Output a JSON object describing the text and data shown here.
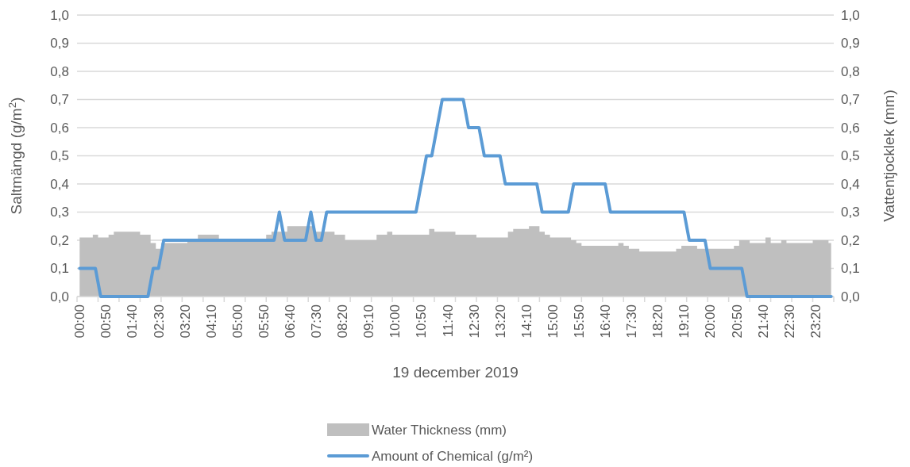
{
  "chart_data": {
    "type": "line",
    "xlabel": "19 december 2019",
    "ylabel": "Saltmängd (g/m$^{2}$)",
    "y2label": "Vattentjocklek (mm)",
    "categories": [
      "00:00",
      null,
      null,
      null,
      null,
      "00:50",
      null,
      null,
      null,
      null,
      "01:40",
      null,
      null,
      null,
      null,
      "02:30",
      null,
      null,
      null,
      null,
      "03:20",
      null,
      null,
      null,
      null,
      "04:10",
      null,
      null,
      null,
      null,
      "05:00",
      null,
      null,
      null,
      null,
      "05:50",
      null,
      null,
      null,
      null,
      "06:40",
      null,
      null,
      null,
      null,
      "07:30",
      null,
      null,
      null,
      null,
      "08:20",
      null,
      null,
      null,
      null,
      "09:10",
      null,
      null,
      null,
      null,
      "10:00",
      null,
      null,
      null,
      null,
      "10:50",
      null,
      null,
      null,
      null,
      "11:40",
      null,
      null,
      null,
      null,
      "12:30",
      null,
      null,
      null,
      null,
      "13:20",
      null,
      null,
      null,
      null,
      "14:10",
      null,
      null,
      null,
      null,
      "15:00",
      null,
      null,
      null,
      null,
      "15:50",
      null,
      null,
      null,
      null,
      "16:40",
      null,
      null,
      null,
      null,
      "17:30",
      null,
      null,
      null,
      null,
      "18:20",
      null,
      null,
      null,
      null,
      "19:10",
      null,
      null,
      null,
      null,
      "20:00",
      null,
      null,
      null,
      null,
      "20:50",
      null,
      null,
      null,
      null,
      "21:40",
      null,
      null,
      null,
      null,
      "22:30",
      null,
      null,
      null,
      null,
      "23:20",
      null,
      null,
      null
    ],
    "series": [
      {
        "name": "Water Thickness (mm)",
        "type": "area",
        "axis": "y2",
        "color": "#bfbfbf",
        "values": [
          0.21,
          0.21,
          0.21,
          0.22,
          0.21,
          0.21,
          0.22,
          0.23,
          0.23,
          0.23,
          0.23,
          0.23,
          0.22,
          0.22,
          0.19,
          0.17,
          0.19,
          0.19,
          0.19,
          0.19,
          0.19,
          0.2,
          0.2,
          0.22,
          0.22,
          0.22,
          0.22,
          0.2,
          0.2,
          0.2,
          0.2,
          0.2,
          0.2,
          0.2,
          0.2,
          0.2,
          0.22,
          0.23,
          0.23,
          0.23,
          0.25,
          0.25,
          0.25,
          0.25,
          0.25,
          0.23,
          0.23,
          0.23,
          0.23,
          0.22,
          0.22,
          0.2,
          0.2,
          0.2,
          0.2,
          0.2,
          0.2,
          0.22,
          0.22,
          0.23,
          0.22,
          0.22,
          0.22,
          0.22,
          0.22,
          0.22,
          0.22,
          0.24,
          0.23,
          0.23,
          0.23,
          0.23,
          0.22,
          0.22,
          0.22,
          0.22,
          0.21,
          0.21,
          0.21,
          0.21,
          0.21,
          0.21,
          0.23,
          0.24,
          0.24,
          0.24,
          0.25,
          0.25,
          0.23,
          0.22,
          0.21,
          0.21,
          0.21,
          0.21,
          0.2,
          0.19,
          0.18,
          0.18,
          0.18,
          0.18,
          0.18,
          0.18,
          0.18,
          0.19,
          0.18,
          0.17,
          0.17,
          0.16,
          0.16,
          0.16,
          0.16,
          0.16,
          0.16,
          0.16,
          0.17,
          0.18,
          0.18,
          0.18,
          0.17,
          0.17,
          0.17,
          0.17,
          0.17,
          0.17,
          0.17,
          0.18,
          0.2,
          0.2,
          0.19,
          0.19,
          0.19,
          0.21,
          0.19,
          0.19,
          0.2,
          0.19,
          0.19,
          0.19,
          0.19,
          0.19,
          0.2,
          0.2,
          0.2,
          0.19
        ]
      },
      {
        "name": "Amount of Chemical (g/m²)",
        "color": "#5b9bd5",
        "values": [
          0.1,
          0.1,
          0.1,
          0.1,
          0,
          0,
          0,
          0,
          0,
          0,
          0,
          0,
          0,
          0,
          0.1,
          0.1,
          0.2,
          0.2,
          0.2,
          0.2,
          0.2,
          0.2,
          0.2,
          0.2,
          0.2,
          0.2,
          0.2,
          0.2,
          0.2,
          0.2,
          0.2,
          0.2,
          0.2,
          0.2,
          0.2,
          0.2,
          0.2,
          0.2,
          0.3,
          0.2,
          0.2,
          0.2,
          0.2,
          0.2,
          0.3,
          0.2,
          0.2,
          0.3,
          0.3,
          0.3,
          0.3,
          0.3,
          0.3,
          0.3,
          0.3,
          0.3,
          0.3,
          0.3,
          0.3,
          0.3,
          0.3,
          0.3,
          0.3,
          0.3,
          0.3,
          0.4,
          0.5,
          0.5,
          0.6,
          0.7,
          0.7,
          0.7,
          0.7,
          0.7,
          0.6,
          0.6,
          0.6,
          0.5,
          0.5,
          0.5,
          0.5,
          0.4,
          0.4,
          0.4,
          0.4,
          0.4,
          0.4,
          0.4,
          0.3,
          0.3,
          0.3,
          0.3,
          0.3,
          0.3,
          0.4,
          0.4,
          0.4,
          0.4,
          0.4,
          0.4,
          0.4,
          0.3,
          0.3,
          0.3,
          0.3,
          0.3,
          0.3,
          0.3,
          0.3,
          0.3,
          0.3,
          0.3,
          0.3,
          0.3,
          0.3,
          0.3,
          0.2,
          0.2,
          0.2,
          0.2,
          0.1,
          0.1,
          0.1,
          0.1,
          0.1,
          0.1,
          0.1,
          0,
          0,
          0,
          0,
          0,
          0,
          0,
          0,
          0,
          0,
          0,
          0,
          0,
          0,
          0,
          0,
          0
        ]
      }
    ],
    "ylim": [
      0,
      1
    ],
    "yticks": [
      {
        "value": 0,
        "label": "0,0"
      },
      {
        "value": 0.1,
        "label": "0,1"
      },
      {
        "value": 0.2,
        "label": "0,2"
      },
      {
        "value": 0.3,
        "label": "0,3"
      },
      {
        "value": 0.4,
        "label": "0,4"
      },
      {
        "value": 0.5,
        "label": "0,5"
      },
      {
        "value": 0.6,
        "label": "0,6"
      },
      {
        "value": 0.7,
        "label": "0,7"
      },
      {
        "value": 0.8,
        "label": "0,8"
      },
      {
        "value": 0.9,
        "label": "0,9"
      },
      {
        "value": 1,
        "label": "1,0"
      }
    ],
    "y2lim": [
      0,
      1
    ],
    "y2ticks": [
      {
        "value": 0,
        "label": "0,0"
      },
      {
        "value": 0.1,
        "label": "0,1"
      },
      {
        "value": 0.2,
        "label": "0,2"
      },
      {
        "value": 0.3,
        "label": "0,3"
      },
      {
        "value": 0.4,
        "label": "0,4"
      },
      {
        "value": 0.5,
        "label": "0,5"
      },
      {
        "value": 0.6,
        "label": "0,6"
      },
      {
        "value": 0.7,
        "label": "0,7"
      },
      {
        "value": 0.8,
        "label": "0,8"
      },
      {
        "value": 0.9,
        "label": "0,9"
      },
      {
        "value": 1,
        "label": "1,0"
      }
    ],
    "grid": "y",
    "legend": "bottom"
  }
}
